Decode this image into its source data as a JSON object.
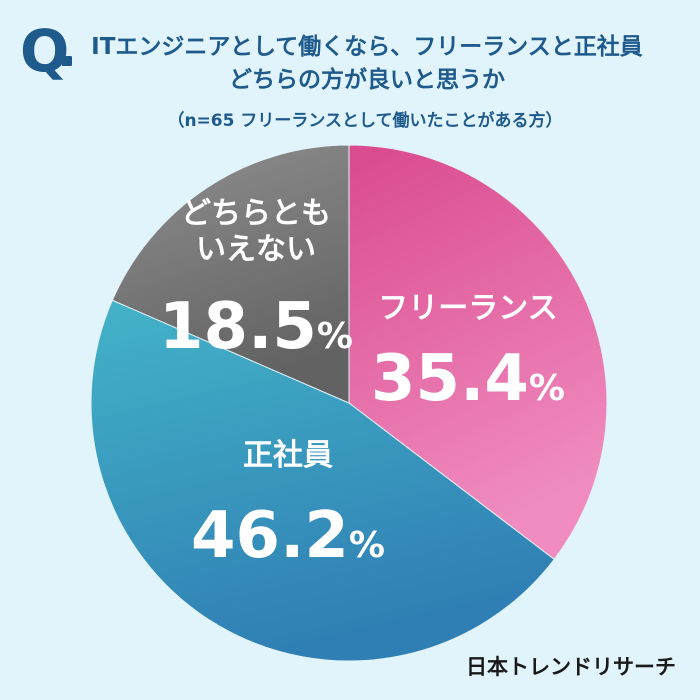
{
  "header": {
    "q_label": "Q",
    "title_line1": "ITエンジニアとして働くなら、フリーランスと正社員",
    "title_line2": "どちらの方が良いと思うか",
    "subtitle": "（n=65 フリーランスとして働いたことがある方）"
  },
  "brand": "日本トレンドリサーチ",
  "chart_data": {
    "type": "pie",
    "title": "ITエンジニアとして働くなら、フリーランスと正社員どちらの方が良いと思うか",
    "subtitle": "（n=65 フリーランスとして働いたことがある方）",
    "unit": "%",
    "slices": [
      {
        "label": "フリーランス",
        "value": 35.4,
        "value_text": "35.4",
        "color_start": "#d94a8e",
        "color_end": "#f08cbf"
      },
      {
        "label": "正社員",
        "value": 46.2,
        "value_text": "46.2",
        "color_start": "#44b3c8",
        "color_end": "#2f7fb4"
      },
      {
        "label_lines": [
          "どちらとも",
          "いえない"
        ],
        "value": 18.5,
        "value_text": "18.5",
        "color_start": "#8f8f8f",
        "color_end": "#626262"
      }
    ],
    "start_angle_deg": 0,
    "direction": "clockwise"
  }
}
